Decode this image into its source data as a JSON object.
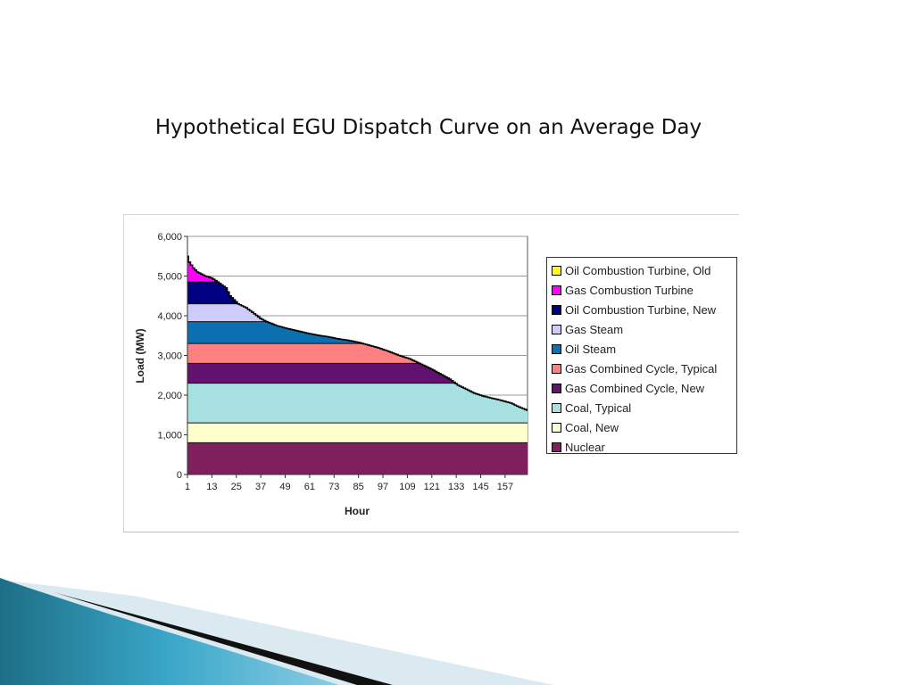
{
  "slide": {
    "title": "Hypothetical EGU Dispatch Curve on an Average Day"
  },
  "chart_data": {
    "type": "area",
    "title": "",
    "xlabel": "Hour",
    "ylabel": "Load (MW)",
    "ylim": [
      0,
      6000
    ],
    "xlim": [
      1,
      168
    ],
    "y_ticks": [
      "0",
      "1,000",
      "2,000",
      "3,000",
      "4,000",
      "5,000",
      "6,000"
    ],
    "y_tick_values": [
      0,
      1000,
      2000,
      3000,
      4000,
      5000,
      6000
    ],
    "x_ticks": [
      "1",
      "13",
      "25",
      "37",
      "49",
      "61",
      "73",
      "85",
      "97",
      "109",
      "121",
      "133",
      "145",
      "157"
    ],
    "x_tick_values": [
      1,
      13,
      25,
      37,
      49,
      61,
      73,
      85,
      97,
      109,
      121,
      133,
      145,
      157
    ],
    "grid": true,
    "legend_position": "right",
    "load_curve": {
      "x": [
        1,
        2,
        4,
        6,
        10,
        13,
        16,
        20,
        22,
        24,
        26,
        30,
        34,
        37,
        40,
        45,
        50,
        55,
        60,
        65,
        70,
        75,
        80,
        85,
        90,
        95,
        100,
        105,
        110,
        115,
        120,
        125,
        130,
        134,
        138,
        142,
        146,
        150,
        155,
        160,
        164,
        168
      ],
      "y": [
        5500,
        5350,
        5200,
        5100,
        5000,
        4950,
        4850,
        4700,
        4500,
        4400,
        4300,
        4200,
        4050,
        3930,
        3850,
        3750,
        3680,
        3620,
        3560,
        3510,
        3470,
        3420,
        3380,
        3330,
        3260,
        3190,
        3100,
        3000,
        2920,
        2800,
        2680,
        2540,
        2400,
        2250,
        2150,
        2050,
        1980,
        1930,
        1870,
        1800,
        1700,
        1620
      ]
    },
    "series": [
      {
        "name": "Nuclear",
        "min": 0,
        "max": 800,
        "color": "#7f1f5e"
      },
      {
        "name": "Coal, New",
        "min": 800,
        "max": 1300,
        "color": "#ffffcc"
      },
      {
        "name": "Coal, Typical",
        "min": 1300,
        "max": 2300,
        "color": "#a6e0e0"
      },
      {
        "name": "Gas Combined Cycle, New",
        "min": 2300,
        "max": 2800,
        "color": "#62126e"
      },
      {
        "name": "Gas Combined Cycle, Typical",
        "min": 2800,
        "max": 3300,
        "color": "#ff8080"
      },
      {
        "name": "Oil Steam",
        "min": 3300,
        "max": 3850,
        "color": "#0a70b0"
      },
      {
        "name": "Gas Steam",
        "min": 3850,
        "max": 4300,
        "color": "#ccccff"
      },
      {
        "name": "Oil Combustion Turbine, New",
        "min": 4300,
        "max": 4850,
        "color": "#000080"
      },
      {
        "name": "Gas Combustion Turbine",
        "min": 4850,
        "max": 5350,
        "color": "#ff00ff"
      },
      {
        "name": "Oil Combustion Turbine, Old",
        "min": 5350,
        "max": 6000,
        "color": "#ffff00"
      }
    ],
    "legend_order": [
      "Oil Combustion Turbine, Old",
      "Gas Combustion Turbine",
      "Oil Combustion Turbine, New",
      "Gas Steam",
      "Oil Steam",
      "Gas Combined Cycle, Typical",
      "Gas Combined Cycle, New",
      "Coal, Typical",
      "Coal, New",
      "Nuclear"
    ]
  }
}
